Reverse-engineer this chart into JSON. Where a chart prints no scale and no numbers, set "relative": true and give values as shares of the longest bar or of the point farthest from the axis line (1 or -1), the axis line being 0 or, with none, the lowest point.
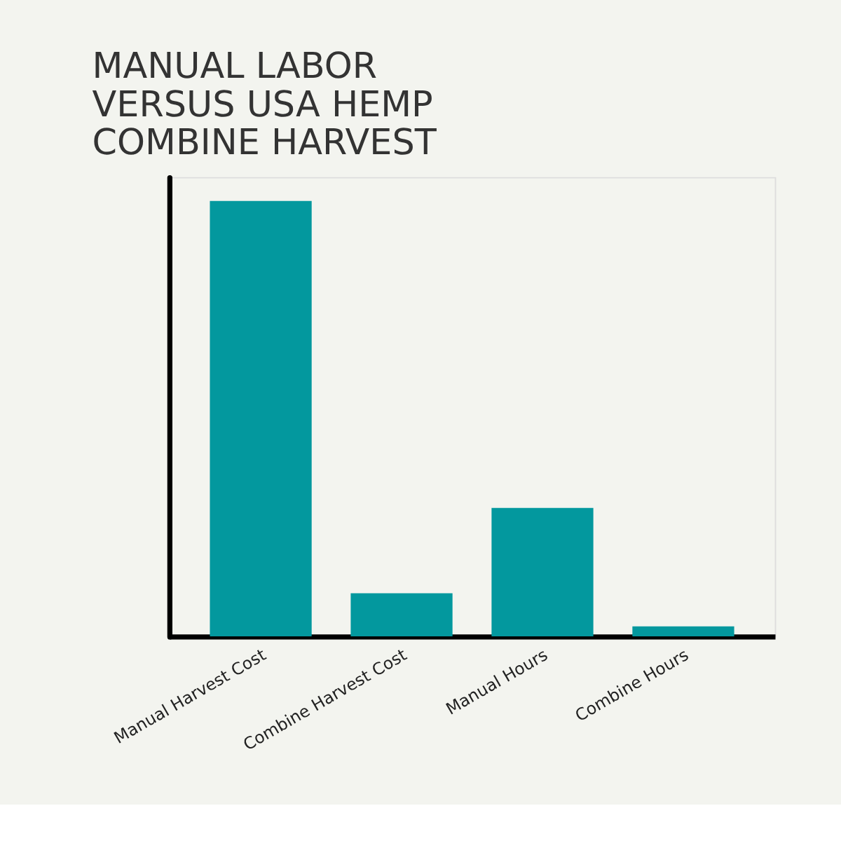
{
  "chart_data": {
    "type": "bar",
    "title": "MANUAL LABOR VERSUS USA HEMP COMBINE HARVEST",
    "relative": true,
    "categories": [
      "Manual Harvest Cost",
      "Combine Harvest Cost",
      "Manual Hours",
      "Combine Hours"
    ],
    "series": [
      {
        "color": "#03989e",
        "values": [
          1,
          0.099,
          0.295,
          0.023
        ]
      }
    ],
    "grid": false
  }
}
